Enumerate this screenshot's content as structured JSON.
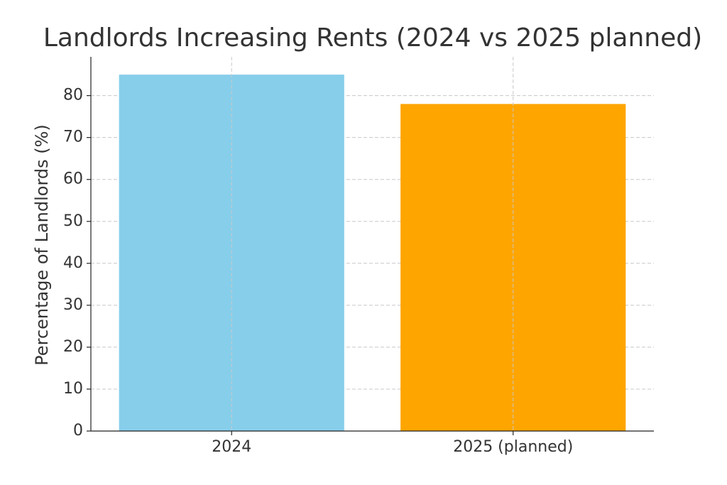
{
  "chart_data": {
    "type": "bar",
    "title": "Landlords Increasing Rents (2024 vs 2025 planned)",
    "y_label": "Percentage of Landlords (%)",
    "categories": [
      "2024",
      "2025 (planned)"
    ],
    "values": [
      85,
      78
    ],
    "colors": [
      "#87ceeb",
      "#ffa500"
    ],
    "ylim": [
      0,
      89.25
    ],
    "yticks": [
      0,
      10,
      20,
      30,
      40,
      50,
      60,
      70,
      80
    ],
    "grid": true
  }
}
